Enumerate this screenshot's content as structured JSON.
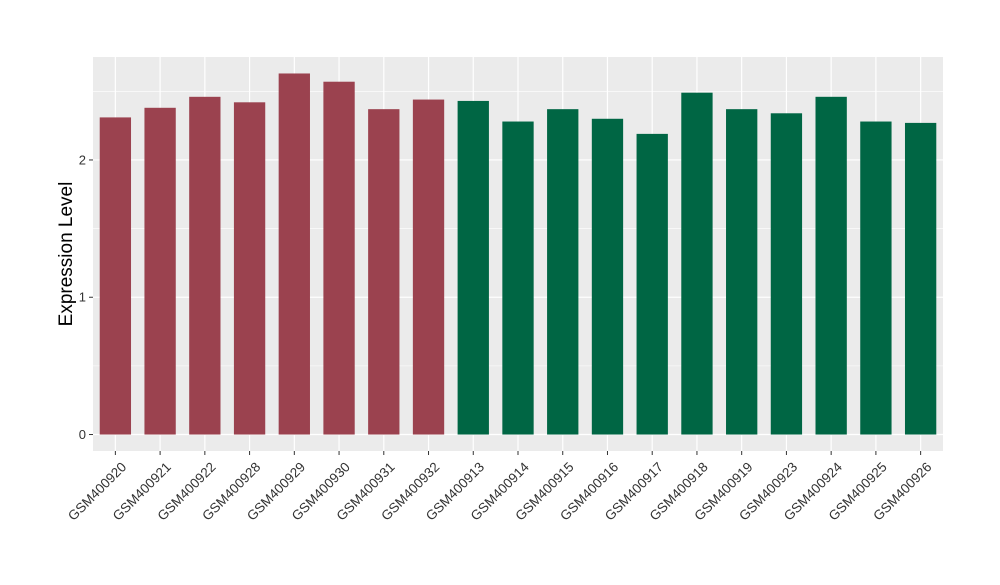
{
  "chart_data": {
    "type": "bar",
    "title": "",
    "xlabel": "",
    "ylabel": "Expression Level",
    "ylim": [
      -0.12,
      2.75
    ],
    "yticks": [
      0,
      1,
      2
    ],
    "grid": true,
    "legend": "none",
    "categories": [
      "GSM400920",
      "GSM400921",
      "GSM400922",
      "GSM400928",
      "GSM400929",
      "GSM400930",
      "GSM400931",
      "GSM400932",
      "GSM400913",
      "GSM400914",
      "GSM400915",
      "GSM400916",
      "GSM400917",
      "GSM400918",
      "GSM400919",
      "GSM400923",
      "GSM400924",
      "GSM400925",
      "GSM400926"
    ],
    "values": [
      2.31,
      2.38,
      2.46,
      2.42,
      2.63,
      2.57,
      2.37,
      2.44,
      2.43,
      2.28,
      2.37,
      2.3,
      2.19,
      2.49,
      2.37,
      2.34,
      2.46,
      2.28,
      2.27
    ],
    "groups": [
      "a",
      "a",
      "a",
      "a",
      "a",
      "a",
      "a",
      "a",
      "b",
      "b",
      "b",
      "b",
      "b",
      "b",
      "b",
      "b",
      "b",
      "b",
      "b"
    ],
    "group_colors": {
      "a": "#9b424f",
      "b": "#006644"
    },
    "panel_color": "#ebebeb",
    "grid_color": "#ffffff"
  }
}
